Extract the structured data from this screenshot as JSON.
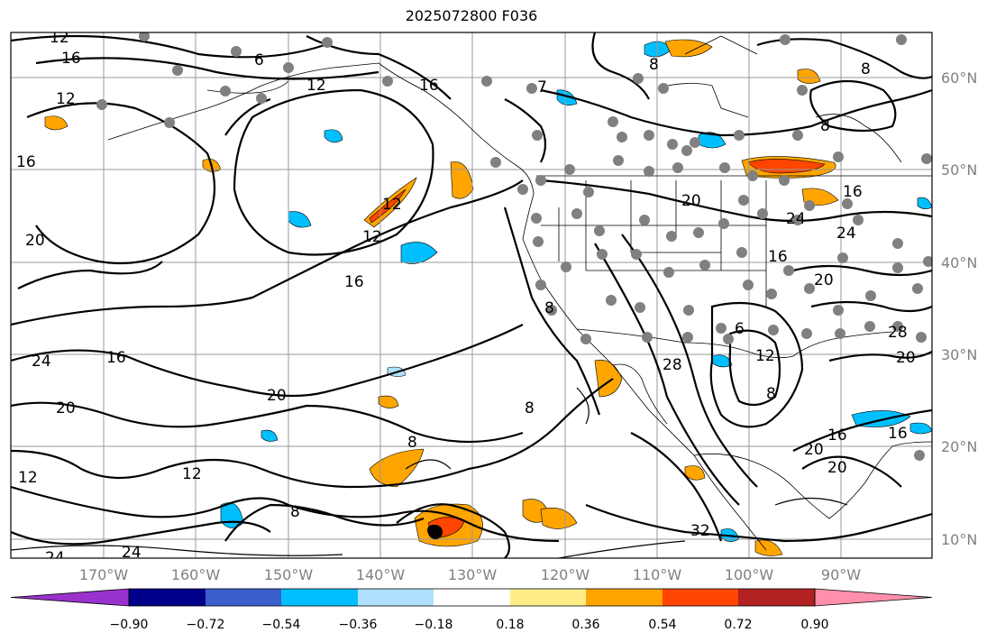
{
  "title": "2025072800 F036",
  "map": {
    "lon_ticks": [
      "170°W",
      "160°W",
      "150°W",
      "140°W",
      "130°W",
      "120°W",
      "110°W",
      "100°W",
      "90°W"
    ],
    "lat_ticks": [
      "10°N",
      "20°N",
      "30°N",
      "40°N",
      "50°N",
      "60°N"
    ],
    "contour_labels": [
      "12",
      "16",
      "12",
      "16",
      "6",
      "12",
      "16",
      "7",
      "8",
      "8",
      "8",
      "12",
      "16",
      "20",
      "16",
      "24",
      "20",
      "20",
      "12",
      "8",
      "8",
      "32",
      "24",
      "12",
      "8",
      "20",
      "28",
      "8",
      "16",
      "12",
      "24",
      "20",
      "16",
      "24",
      "20",
      "28",
      "6",
      "8",
      "16",
      "20",
      "12",
      "16",
      "20",
      "24"
    ]
  },
  "colorbar": {
    "ticks": [
      "−0.90",
      "−0.72",
      "−0.54",
      "−0.36",
      "−0.18",
      "0.18",
      "0.36",
      "0.54",
      "0.72",
      "0.90"
    ],
    "colors": [
      "#9932cc",
      "#00008b",
      "#3a5fcd",
      "#00bfff",
      "#b0e2ff",
      "#ffffff",
      "#ffee88",
      "#ffa500",
      "#ff4500",
      "#b22222",
      "#ff8fab"
    ]
  }
}
